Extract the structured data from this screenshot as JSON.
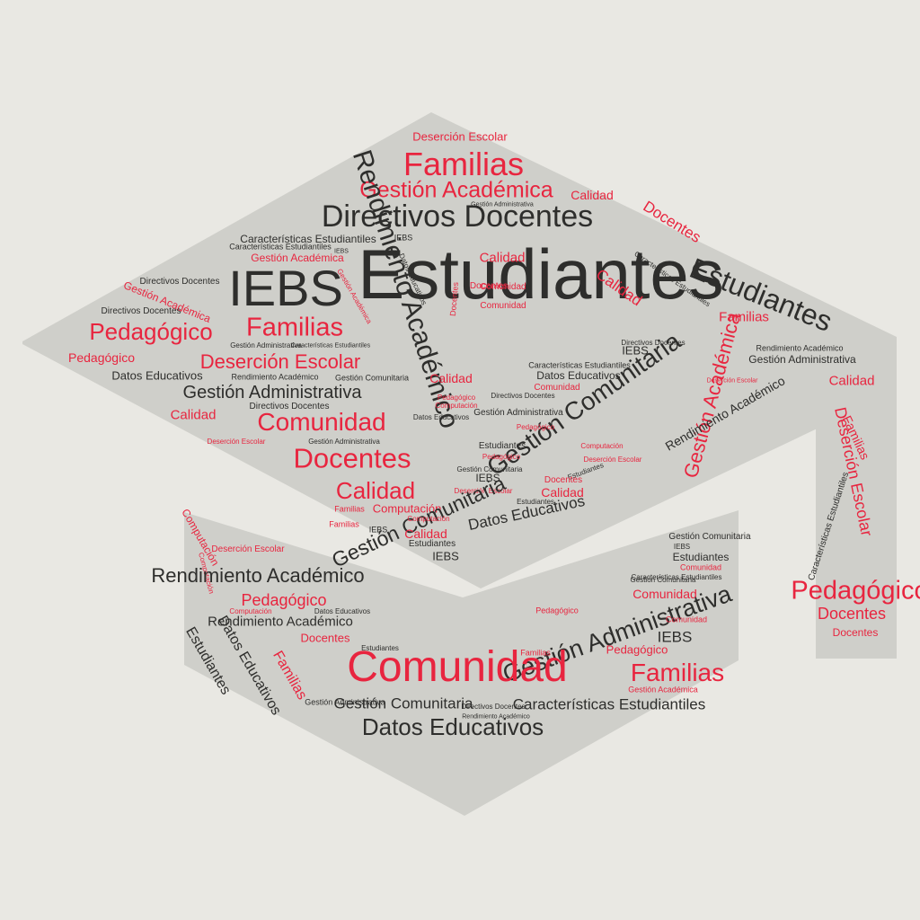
{
  "colors": {
    "background": "#e9e8e3",
    "cap": "#cfcfca",
    "red": "#e8253f",
    "dark": "#2e2e2c"
  },
  "words": [
    {
      "t": "Deserción Escolar",
      "c": "r"
    },
    {
      "t": "Familias",
      "c": "r"
    },
    {
      "t": "Gestión Académica",
      "c": "r"
    },
    {
      "t": "Calidad",
      "c": "r"
    },
    {
      "t": "Directivos Docentes",
      "c": "d"
    },
    {
      "t": "Gestión Administrativa",
      "c": "d"
    },
    {
      "t": "Docentes",
      "c": "r"
    },
    {
      "t": "IEBS",
      "c": "d"
    },
    {
      "t": "Características Estudiantiles",
      "c": "d"
    },
    {
      "t": "Características Estudiantiles",
      "c": "d"
    },
    {
      "t": "Gestión Académica",
      "c": "r"
    },
    {
      "t": "IEBS",
      "c": "d"
    },
    {
      "t": "Estudiantes",
      "c": "d"
    },
    {
      "t": "IEBS",
      "c": "d"
    },
    {
      "t": "Rendimiento Académico",
      "c": "d"
    },
    {
      "t": "Calidad",
      "c": "r"
    },
    {
      "t": "Datos Educativos",
      "c": "d"
    },
    {
      "t": "Gestión Académica",
      "c": "r"
    },
    {
      "t": "Docentes",
      "c": "r"
    },
    {
      "t": "Comunidad",
      "c": "r"
    },
    {
      "t": "Docentes",
      "c": "r"
    },
    {
      "t": "Comunidad",
      "c": "r"
    },
    {
      "t": "Calidad",
      "c": "r"
    },
    {
      "t": "Características Estudiantiles",
      "c": "d"
    },
    {
      "t": "Directivos Docentes",
      "c": "d"
    },
    {
      "t": "Gestión Académica",
      "c": "r"
    },
    {
      "t": "Directivos Docentes",
      "c": "d"
    },
    {
      "t": "Pedagógico",
      "c": "r"
    },
    {
      "t": "Familias",
      "c": "r"
    },
    {
      "t": "Familias",
      "c": "r"
    },
    {
      "t": "Rendimiento Académico",
      "c": "d"
    },
    {
      "t": "Gestión Administrativa",
      "c": "d"
    },
    {
      "t": "Características Estudiantiles",
      "c": "d"
    },
    {
      "t": "Estudiantes",
      "c": "d"
    },
    {
      "t": "Directivos Docentes",
      "c": "d"
    },
    {
      "t": "IEBS",
      "c": "d"
    },
    {
      "t": "Gestión Administrativa",
      "c": "d"
    },
    {
      "t": "Pedagógico",
      "c": "r"
    },
    {
      "t": "Deserción Escolar",
      "c": "r"
    },
    {
      "t": "Datos Educativos",
      "c": "d"
    },
    {
      "t": "Rendimiento Académico",
      "c": "d"
    },
    {
      "t": "Gestión Comunitaria",
      "c": "d"
    },
    {
      "t": "Características Estudiantiles",
      "c": "d"
    },
    {
      "t": "Datos Educativos",
      "c": "d"
    },
    {
      "t": "Calidad",
      "c": "r"
    },
    {
      "t": "Deserción Escolar",
      "c": "r"
    },
    {
      "t": "Calidad",
      "c": "r"
    },
    {
      "t": "Comunidad",
      "c": "r"
    },
    {
      "t": "Directivos Docentes",
      "c": "d"
    },
    {
      "t": "Gestión Administrativa",
      "c": "d"
    },
    {
      "t": "Gestión Administrativa",
      "c": "d"
    },
    {
      "t": "Pedagógico",
      "c": "r"
    },
    {
      "t": "Computación",
      "c": "r"
    },
    {
      "t": "Calidad",
      "c": "r"
    },
    {
      "t": "Directivos Docentes",
      "c": "d"
    },
    {
      "t": "Datos Educativos",
      "c": "d"
    },
    {
      "t": "Gestión Comunitaria",
      "c": "d"
    },
    {
      "t": "Gestión Académica",
      "c": "r"
    },
    {
      "t": "Rendimiento Académico",
      "c": "d"
    },
    {
      "t": "Comunidad",
      "c": "r"
    },
    {
      "t": "Pedagógico",
      "c": "r"
    },
    {
      "t": "Deserción Escolar",
      "c": "r"
    },
    {
      "t": "Gestión Administrativa",
      "c": "d"
    },
    {
      "t": "Estudiantes",
      "c": "d"
    },
    {
      "t": "Computación",
      "c": "r"
    },
    {
      "t": "Docentes",
      "c": "r"
    },
    {
      "t": "Deserción Escolar",
      "c": "r"
    },
    {
      "t": "Pedagógico",
      "c": "r"
    },
    {
      "t": "Gestión Comunitaria",
      "c": "d"
    },
    {
      "t": "Estudiantes",
      "c": "d"
    },
    {
      "t": "IEBS",
      "c": "d"
    },
    {
      "t": "Calidad",
      "c": "r"
    },
    {
      "t": "Docentes",
      "c": "r"
    },
    {
      "t": "Deserción Escolar",
      "c": "r"
    },
    {
      "t": "Calidad",
      "c": "r"
    },
    {
      "t": "Familias",
      "c": "r"
    },
    {
      "t": "Computación",
      "c": "r"
    },
    {
      "t": "Gestión Comunitaria",
      "c": "d"
    },
    {
      "t": "Computación",
      "c": "r"
    },
    {
      "t": "Datos Educativos",
      "c": "d"
    },
    {
      "t": "Estudiantes",
      "c": "d"
    },
    {
      "t": "IEBS",
      "c": "d"
    },
    {
      "t": "Calidad",
      "c": "r"
    },
    {
      "t": "Familias",
      "c": "r"
    },
    {
      "t": "Deserción Escolar",
      "c": "r"
    },
    {
      "t": "Estudiantes",
      "c": "d"
    },
    {
      "t": "IEBS",
      "c": "d"
    },
    {
      "t": "Familias",
      "c": "r"
    },
    {
      "t": "Computación",
      "c": "r"
    },
    {
      "t": "Computación",
      "c": "r"
    },
    {
      "t": "Gestión Comunitaria",
      "c": "d"
    },
    {
      "t": "Estudiantes",
      "c": "d"
    },
    {
      "t": "IEBS",
      "c": "d"
    },
    {
      "t": "Comunidad",
      "c": "r"
    },
    {
      "t": "Deserción Escolar",
      "c": "r"
    },
    {
      "t": "Rendimiento Académico",
      "c": "d"
    },
    {
      "t": "Características Estudiantiles",
      "c": "d"
    },
    {
      "t": "Pedagógico",
      "c": "r"
    },
    {
      "t": "Docentes",
      "c": "r"
    },
    {
      "t": "Docentes",
      "c": "r"
    },
    {
      "t": "Pedagógico",
      "c": "r"
    },
    {
      "t": "Comunidad",
      "c": "r"
    },
    {
      "t": "Computación",
      "c": "r"
    },
    {
      "t": "Datos Educativos",
      "c": "d"
    },
    {
      "t": "Características Estudiantiles",
      "c": "d"
    },
    {
      "t": "Rendimiento Académico",
      "c": "d"
    },
    {
      "t": "Gestión Comunitaria",
      "c": "d"
    },
    {
      "t": "Estudiantes",
      "c": "d"
    },
    {
      "t": "Datos Educativos",
      "c": "d"
    },
    {
      "t": "Familias",
      "c": "r"
    },
    {
      "t": "Estudiantes",
      "c": "d"
    },
    {
      "t": "Docentes",
      "c": "r"
    },
    {
      "t": "Gestión Administrativa",
      "c": "d"
    },
    {
      "t": "Pedagógico",
      "c": "r"
    },
    {
      "t": "IEBS",
      "c": "d"
    },
    {
      "t": "Comunidad",
      "c": "r"
    },
    {
      "t": "Pedagógico",
      "c": "r"
    },
    {
      "t": "Familias",
      "c": "r"
    },
    {
      "t": "Comunidad",
      "c": "r"
    },
    {
      "t": "Familias",
      "c": "r"
    },
    {
      "t": "Gestión Administrativa",
      "c": "d"
    },
    {
      "t": "Gestión Comunitaria",
      "c": "d"
    },
    {
      "t": "Gestión Académica",
      "c": "r"
    },
    {
      "t": "Características Estudiantiles",
      "c": "d"
    },
    {
      "t": "Directivos Docentes",
      "c": "d"
    },
    {
      "t": "Datos Educativos",
      "c": "d"
    },
    {
      "t": "Rendimiento Académico",
      "c": "d"
    }
  ]
}
